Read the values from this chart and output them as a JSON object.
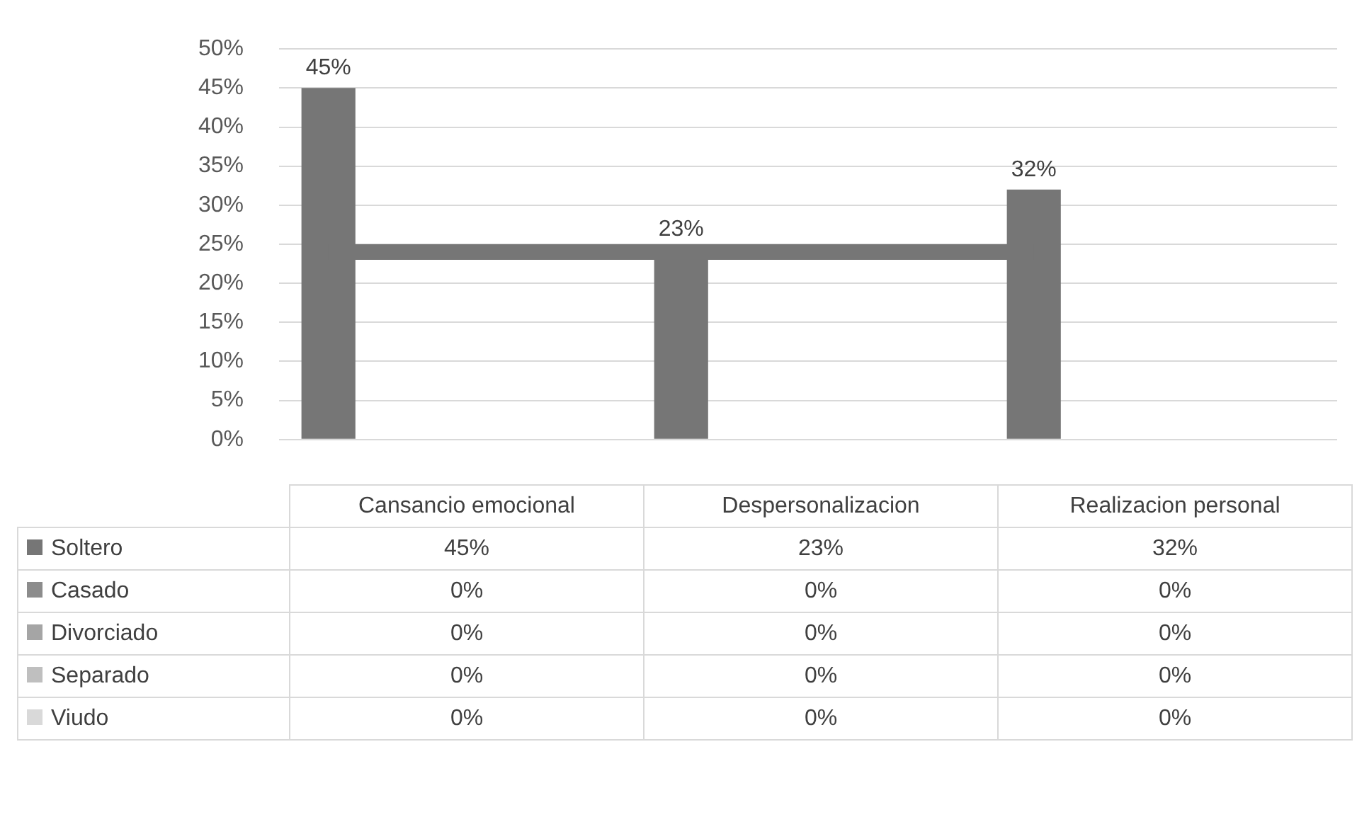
{
  "chart_data": {
    "type": "bar",
    "categories": [
      "Cansancio emocional",
      "Despersonalizacion",
      "Realizacion personal"
    ],
    "series": [
      {
        "name": "Soltero",
        "color": "#767676",
        "values": [
          45,
          23,
          32
        ],
        "value_labels": [
          "45%",
          "23%",
          "32%"
        ]
      },
      {
        "name": "Casado",
        "color": "#8c8c8c",
        "values": [
          0,
          0,
          0
        ],
        "value_labels": [
          "0%",
          "0%",
          "0%"
        ]
      },
      {
        "name": "Divorciado",
        "color": "#a5a5a5",
        "values": [
          0,
          0,
          0
        ],
        "value_labels": [
          "0%",
          "0%",
          "0%"
        ]
      },
      {
        "name": "Separado",
        "color": "#bfbfbf",
        "values": [
          0,
          0,
          0
        ],
        "value_labels": [
          "0%",
          "0%",
          "0%"
        ]
      },
      {
        "name": "Viudo",
        "color": "#d9d9d9",
        "values": [
          0,
          0,
          0
        ],
        "value_labels": [
          "0%",
          "0%",
          "0%"
        ]
      }
    ],
    "ylim": [
      0,
      50
    ],
    "yticks": [
      {
        "value": 0,
        "label": "0%"
      },
      {
        "value": 5,
        "label": "5%"
      },
      {
        "value": 10,
        "label": "10%"
      },
      {
        "value": 15,
        "label": "15%"
      },
      {
        "value": 20,
        "label": "20%"
      },
      {
        "value": 25,
        "label": "25%"
      },
      {
        "value": 30,
        "label": "30%"
      },
      {
        "value": 35,
        "label": "35%"
      },
      {
        "value": 40,
        "label": "40%"
      },
      {
        "value": 45,
        "label": "45%"
      },
      {
        "value": 50,
        "label": "50%"
      }
    ],
    "ref_lines": [
      {
        "axis": "y",
        "value": 24,
        "color": "#767676"
      }
    ],
    "grid": "y",
    "data_labels": true,
    "legend": "bottom"
  }
}
